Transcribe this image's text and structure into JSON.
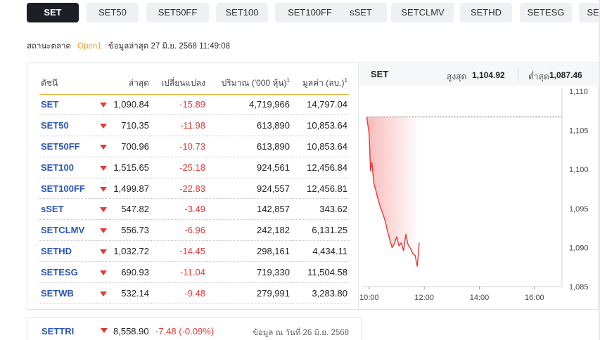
{
  "tabs": [
    "SET",
    "SET50",
    "SET50FF",
    "SET100",
    "SET100FF",
    "sSET",
    "SETCLMV",
    "SETHD",
    "SETESG",
    "SE"
  ],
  "active_tab": "SET",
  "status": {
    "label": "สถานะตลาด",
    "state": "Open1",
    "updated": "ข้อมูลล่าสุด 27 มิ.ย. 2568 11:49:08"
  },
  "table": {
    "headers": {
      "index": "ดัชนี",
      "last": "ล่าสุด",
      "change": "เปลี่ยนแปลง",
      "volume": "ปริมาณ ('000 หุ้น)",
      "value": "มูลค่า (ลบ.)",
      "footnote": "1"
    },
    "rows": [
      {
        "symbol": "SET",
        "last": "1,090.84",
        "change": "-15.89",
        "volume": "4,719,966",
        "value": "14,797.04"
      },
      {
        "symbol": "SET50",
        "last": "710.35",
        "change": "-11.98",
        "volume": "613,890",
        "value": "10,853.64"
      },
      {
        "symbol": "SET50FF",
        "last": "700.96",
        "change": "-10.73",
        "volume": "613,890",
        "value": "10,853.64"
      },
      {
        "symbol": "SET100",
        "last": "1,515.65",
        "change": "-25.18",
        "volume": "924,561",
        "value": "12,456.84"
      },
      {
        "symbol": "SET100FF",
        "last": "1,499.87",
        "change": "-22.83",
        "volume": "924,557",
        "value": "12,456.81"
      },
      {
        "symbol": "sSET",
        "last": "547.82",
        "change": "-3.49",
        "volume": "142,857",
        "value": "343.62"
      },
      {
        "symbol": "SETCLMV",
        "last": "556.73",
        "change": "-6.96",
        "volume": "242,182",
        "value": "6,131.25"
      },
      {
        "symbol": "SETHD",
        "last": "1,032.72",
        "change": "-14.45",
        "volume": "298,161",
        "value": "4,434.11"
      },
      {
        "symbol": "SETESG",
        "last": "690.93",
        "change": "-11.04",
        "volume": "719,330",
        "value": "11,504.58"
      },
      {
        "symbol": "SETWB",
        "last": "532.14",
        "change": "-9.48",
        "volume": "279,991",
        "value": "3,283.80"
      }
    ]
  },
  "chart_header": {
    "symbol": "SET",
    "high_label": "สูงสุด",
    "high": "1,104.92",
    "low_label": "ต่ำสุด",
    "low": "1,087.46"
  },
  "chart_data": {
    "type": "area",
    "x_ticks": [
      "10:00",
      "12:00",
      "14:00",
      "16:00"
    ],
    "y_ticks": [
      "1,110",
      "1,105",
      "1,100",
      "1,095",
      "1,090",
      "1,085"
    ],
    "ylim": [
      1085,
      1110
    ],
    "prev_close": 1106.73,
    "x": [
      "09:55",
      "10:00",
      "10:03",
      "10:06",
      "10:10",
      "10:15",
      "10:20",
      "10:25",
      "10:30",
      "10:35",
      "10:40",
      "10:45",
      "10:50",
      "10:55",
      "11:00",
      "11:05",
      "11:10",
      "11:15",
      "11:20",
      "11:25",
      "11:30",
      "11:35",
      "11:40",
      "11:45",
      "11:49"
    ],
    "values": [
      1106.7,
      1104.5,
      1099.8,
      1100.9,
      1098.3,
      1097.2,
      1096.0,
      1095.1,
      1094.3,
      1093.4,
      1092.1,
      1091.0,
      1090.0,
      1090.5,
      1091.4,
      1090.2,
      1090.6,
      1089.6,
      1091.7,
      1090.3,
      1089.9,
      1089.2,
      1089.0,
      1087.6,
      1090.6
    ],
    "grid": false,
    "line_color": "#e53935",
    "fill_color": "#f5a3a3"
  },
  "settri": {
    "symbol": "SETTRI",
    "value": "8,558.90",
    "change": "-7.48 (-0.09%)",
    "as_of": "ข้อมูล ณ วันที่ 26 มิ.ย. 2568"
  },
  "colors": {
    "negative": "#e53935",
    "symbol": "#2a55b8",
    "accent": "#f0b040",
    "tab_active": "#1c1f26"
  }
}
